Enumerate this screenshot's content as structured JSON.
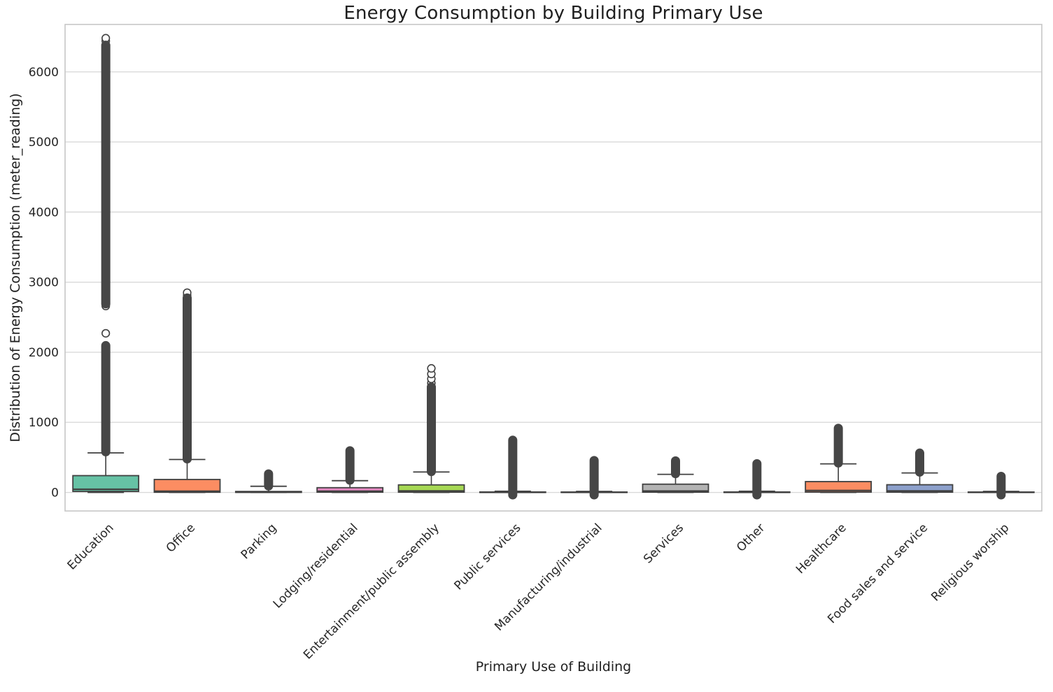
{
  "chart_data": {
    "type": "box",
    "title": "Energy Consumption by Building Primary Use",
    "xlabel": "Primary Use of Building",
    "ylabel": "Distribution of Energy Consumption (meter_reading)",
    "categories": [
      "Education",
      "Office",
      "Parking",
      "Lodging/residential",
      "Entertainment/public assembly",
      "Public services",
      "Manufacturing/industrial",
      "Services",
      "Other",
      "Healthcare",
      "Food sales and service",
      "Religious worship"
    ],
    "yticks": [
      0,
      1000,
      2000,
      3000,
      4000,
      5000,
      6000
    ],
    "ylim": [
      -264,
      6676
    ],
    "grid": "horizontal",
    "legend": "none",
    "palette_name": "Set2",
    "edge_color": "#404040",
    "flier_color": "#464646",
    "grid_color": "#d9d9d9",
    "border_color": "#c6c6c6",
    "boxes": [
      {
        "category": "Education",
        "color": "#66c2a5",
        "whisker_low": 0,
        "q1": 15,
        "median": 45,
        "q3": 240,
        "whisker_high": 565,
        "outlier_columns": [
          [
            580,
            2095
          ],
          [
            2690,
            6380
          ]
        ],
        "outlier_circles": [
          2270,
          2660,
          6440,
          6480
        ]
      },
      {
        "category": "Office",
        "color": "#fc8d62",
        "whisker_low": 0,
        "q1": 3,
        "median": 18,
        "q3": 185,
        "whisker_high": 470,
        "outlier_columns": [
          [
            478,
            2775
          ]
        ],
        "outlier_circles": [
          2810,
          2850
        ]
      },
      {
        "category": "Parking",
        "color": "#8da0cb",
        "whisker_low": 0,
        "q1": 1,
        "median": 5,
        "q3": 14,
        "whisker_high": 88,
        "outlier_columns": [
          [
            92,
            265
          ]
        ],
        "outlier_circles": []
      },
      {
        "category": "Lodging/residential",
        "color": "#e78ac3",
        "whisker_low": 0,
        "q1": 4,
        "median": 18,
        "q3": 68,
        "whisker_high": 168,
        "outlier_columns": [
          [
            175,
            595
          ]
        ],
        "outlier_circles": []
      },
      {
        "category": "Entertainment/public assembly",
        "color": "#a6d854",
        "whisker_low": 0,
        "q1": 4,
        "median": 22,
        "q3": 108,
        "whisker_high": 292,
        "outlier_columns": [
          [
            298,
            1505
          ]
        ],
        "outlier_circles": [
          1560,
          1620,
          1690,
          1770
        ]
      },
      {
        "category": "Public services",
        "color": "#ffd92f",
        "whisker_low": 0,
        "q1": 0,
        "median": 2,
        "q3": 7,
        "whisker_high": 18,
        "outlier_columns": [
          [
            -35,
            745
          ]
        ],
        "outlier_circles": []
      },
      {
        "category": "Manufacturing/industrial",
        "color": "#e5c494",
        "whisker_low": 0,
        "q1": 0,
        "median": 2,
        "q3": 6,
        "whisker_high": 15,
        "outlier_columns": [
          [
            -35,
            455
          ]
        ],
        "outlier_circles": []
      },
      {
        "category": "Services",
        "color": "#b3b3b3",
        "whisker_low": 0,
        "q1": 4,
        "median": 20,
        "q3": 118,
        "whisker_high": 258,
        "outlier_columns": [
          [
            268,
            450
          ]
        ],
        "outlier_circles": []
      },
      {
        "category": "Other",
        "color": "#66c2a5",
        "whisker_low": 0,
        "q1": 0,
        "median": 2,
        "q3": 7,
        "whisker_high": 18,
        "outlier_columns": [
          [
            -35,
            410
          ]
        ],
        "outlier_circles": []
      },
      {
        "category": "Healthcare",
        "color": "#fc8d62",
        "whisker_low": 0,
        "q1": 5,
        "median": 28,
        "q3": 155,
        "whisker_high": 408,
        "outlier_columns": [
          [
            420,
            915
          ]
        ],
        "outlier_circles": []
      },
      {
        "category": "Food sales and service",
        "color": "#8da0cb",
        "whisker_low": 0,
        "q1": 4,
        "median": 22,
        "q3": 110,
        "whisker_high": 278,
        "outlier_columns": [
          [
            290,
            562
          ]
        ],
        "outlier_circles": []
      },
      {
        "category": "Religious worship",
        "color": "#e78ac3",
        "whisker_low": 0,
        "q1": 0,
        "median": 2,
        "q3": 6,
        "whisker_high": 15,
        "outlier_columns": [
          [
            -35,
            230
          ]
        ],
        "outlier_circles": []
      }
    ]
  }
}
